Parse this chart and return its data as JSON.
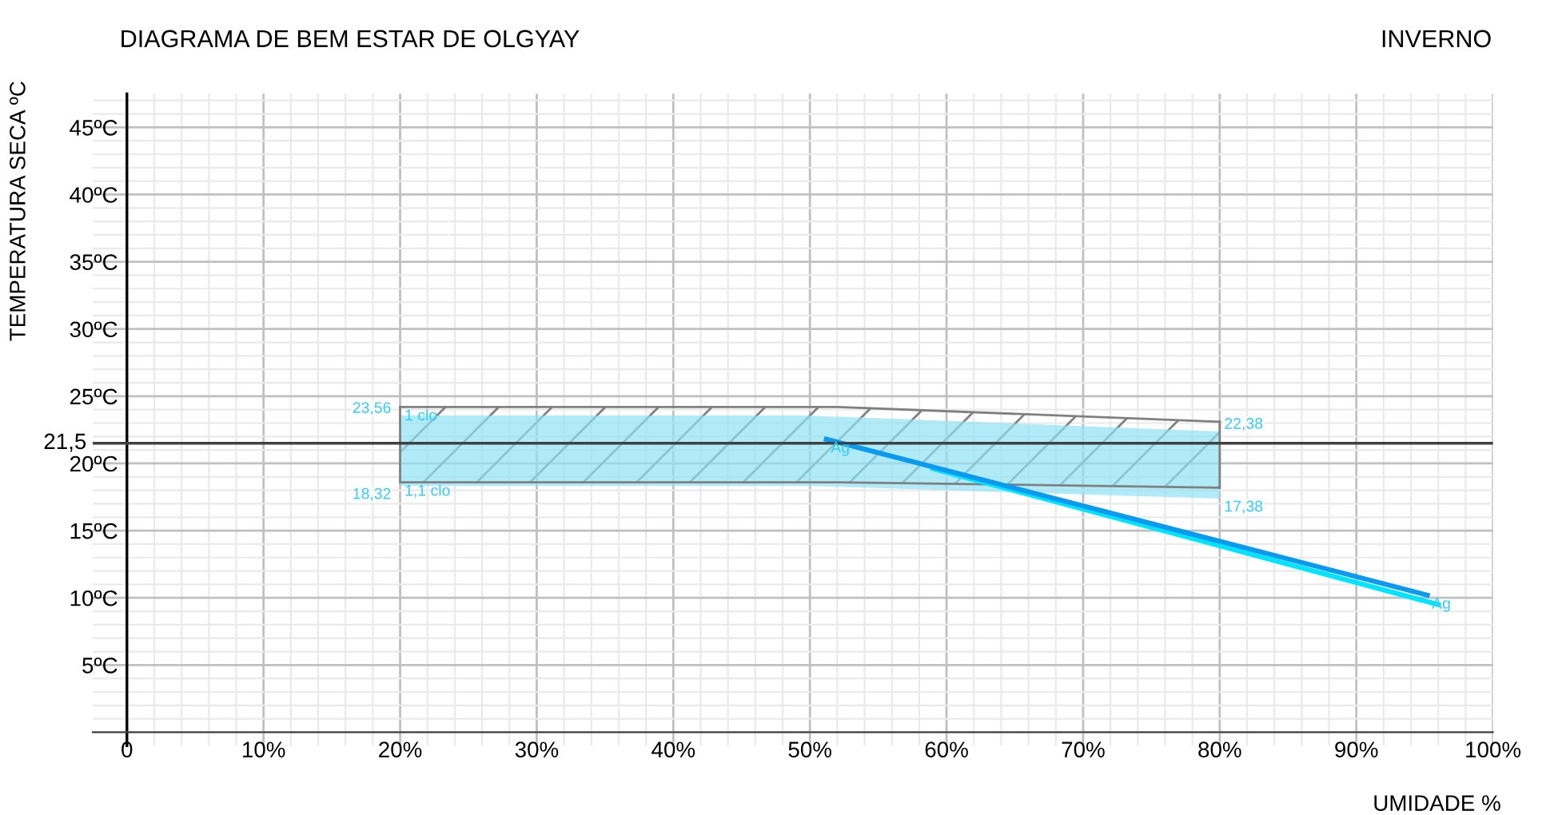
{
  "chart_data": {
    "type": "line",
    "title": "DIAGRAMA DE BEM ESTAR DE OLGYAY",
    "subtitle": "INVERNO",
    "xlabel": "UMIDADE %",
    "ylabel": "TEMPERATURA SECA ºC",
    "xlim": [
      -2.5,
      100
    ],
    "ylim": [
      -1,
      47.5
    ],
    "xticks": [
      {
        "value": 0,
        "label": "0"
      },
      {
        "value": 10,
        "label": "10%"
      },
      {
        "value": 20,
        "label": "20%"
      },
      {
        "value": 30,
        "label": "30%"
      },
      {
        "value": 40,
        "label": "40%"
      },
      {
        "value": 50,
        "label": "50%"
      },
      {
        "value": 60,
        "label": "60%"
      },
      {
        "value": 70,
        "label": "70%"
      },
      {
        "value": 80,
        "label": "80%"
      },
      {
        "value": 90,
        "label": "90%"
      },
      {
        "value": 100,
        "label": "100%"
      }
    ],
    "yticks": [
      {
        "value": 5,
        "label": "5ºC"
      },
      {
        "value": 10,
        "label": "10ºC"
      },
      {
        "value": 15,
        "label": "15ºC"
      },
      {
        "value": 20,
        "label": "20ºC"
      },
      {
        "value": 25,
        "label": "25ºC"
      },
      {
        "value": 30,
        "label": "30ºC"
      },
      {
        "value": 35,
        "label": "35ºC"
      },
      {
        "value": 40,
        "label": "40ºC"
      },
      {
        "value": 45,
        "label": "45ºC"
      }
    ],
    "grid": true,
    "series": [
      {
        "type": "area",
        "color": "#b3ebf8",
        "x": [
          20,
          50,
          80
        ],
        "values": [
          null,
          null,
          null
        ],
        "lower": [
          18.32,
          18.32,
          17.38
        ],
        "upper": [
          23.56,
          23.56,
          22.38
        ]
      },
      {
        "type": "area",
        "line_style": "solid",
        "color": "#808080",
        "x": [
          20,
          52,
          80
        ],
        "values": [
          null,
          null,
          null
        ],
        "lower": [
          18.6,
          18.6,
          18.2
        ],
        "upper": [
          24.2,
          24.2,
          23.1
        ]
      },
      {
        "color": "#00e5ff",
        "x": [
          59,
          96
        ],
        "values": [
          19.6,
          9.5
        ]
      },
      {
        "color": "#0a9bf0",
        "x": [
          51.2,
          95.2
        ],
        "values": [
          21.8,
          10.2
        ]
      }
    ],
    "ref_lines": [
      {
        "axis": "y",
        "value": 21.5,
        "label": "21,5",
        "color": "#404040"
      }
    ],
    "annotations": [
      {
        "text": "23,56",
        "x": 20,
        "y": 23.56
      },
      {
        "text": "18,32",
        "x": 20,
        "y": 18.32
      },
      {
        "text": "22,38",
        "x": 80,
        "y": 22.38
      },
      {
        "text": "17,38",
        "x": 80,
        "y": 17.38
      },
      {
        "text": "1 clo",
        "x": 20,
        "y": 24.2
      },
      {
        "text": "1,1 clo",
        "x": 20,
        "y": 18.6
      },
      {
        "text": "Ag",
        "x": 51.2,
        "y": 21.8
      },
      {
        "text": "Ag",
        "x": 95.2,
        "y": 10.2
      }
    ]
  }
}
